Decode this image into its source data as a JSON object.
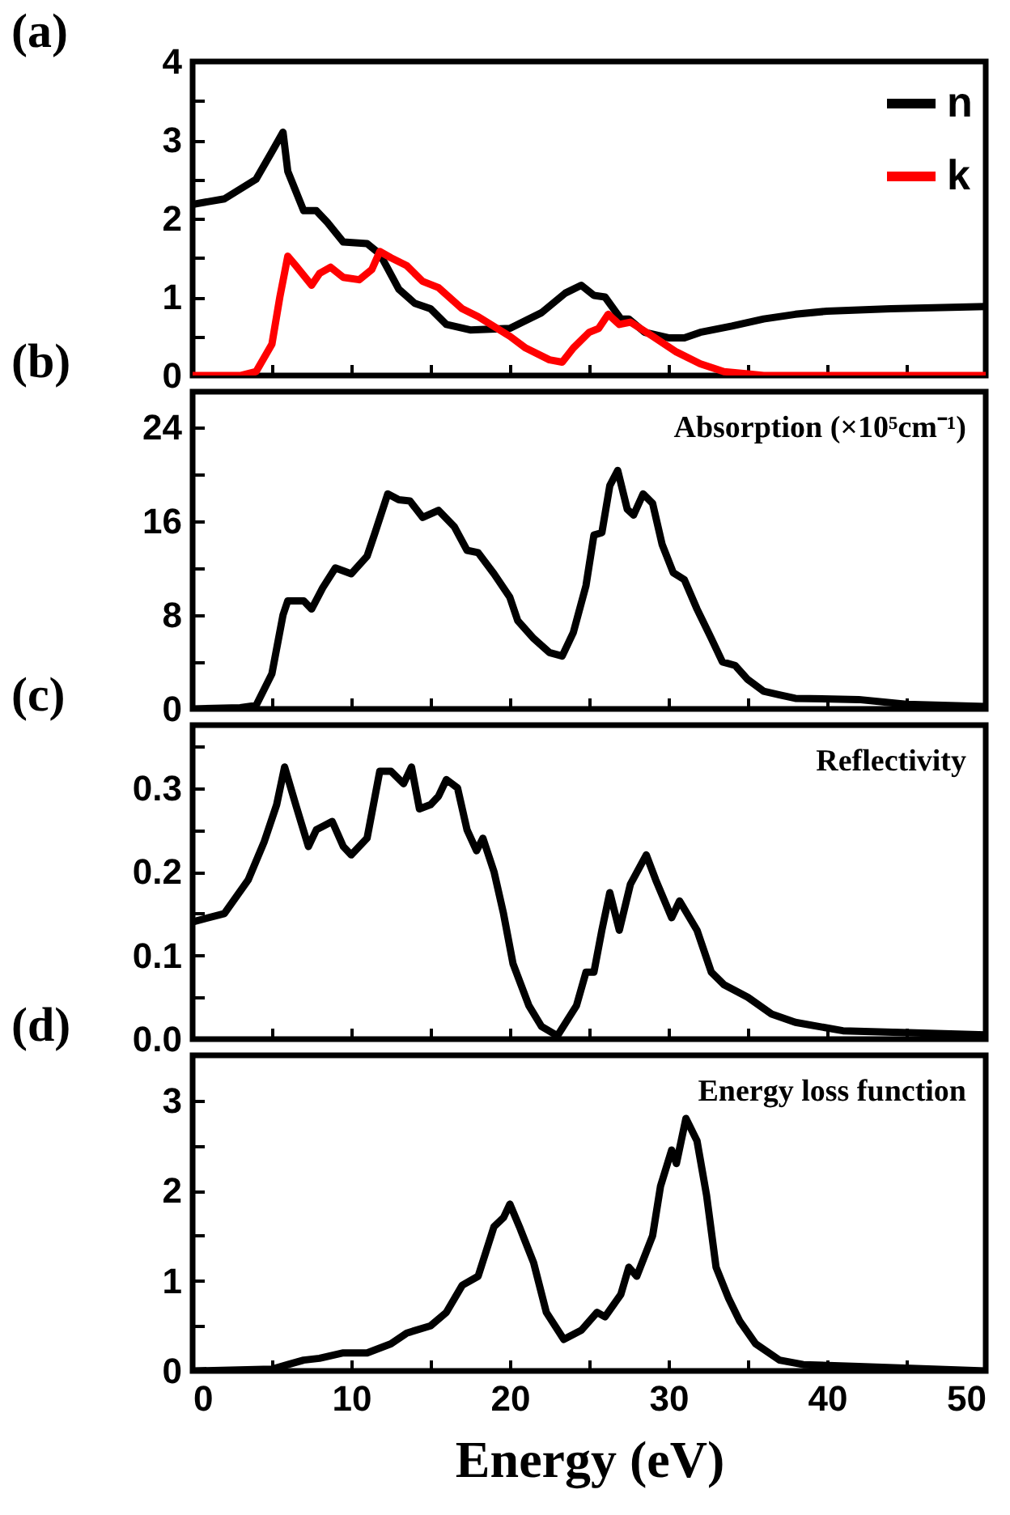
{
  "chart_data": [
    {
      "type": "line",
      "annotations": [
        "(a)"
      ],
      "xlim": [
        0,
        50
      ],
      "xticks": [
        0,
        {
          "value": 5,
          "label": null
        },
        10,
        {
          "value": 15,
          "label": null
        },
        20,
        {
          "value": 25,
          "label": null
        },
        30,
        {
          "value": 35,
          "label": null
        },
        40,
        {
          "value": 45,
          "label": null
        },
        50
      ],
      "ylim": [
        0,
        4
      ],
      "yticks": [
        0,
        {
          "value": 0.5,
          "label": null
        },
        1,
        {
          "value": 1.5,
          "label": null
        },
        2,
        {
          "value": 2.5,
          "label": null
        },
        3,
        {
          "value": 3.5,
          "label": null
        },
        4
      ],
      "tick_labels": "y",
      "legend": "top right",
      "series": [
        {
          "name": "n",
          "color": "#000000",
          "x": [
            0,
            2,
            4,
            5,
            5.7,
            6,
            6.5,
            7,
            7.8,
            8.5,
            9.5,
            11,
            11.8,
            13,
            14,
            15,
            16,
            17.5,
            20,
            22,
            23.5,
            24.5,
            25.3,
            26,
            27,
            27.5,
            28.5,
            30,
            31,
            32,
            34,
            36,
            38,
            40,
            44,
            50
          ],
          "values": [
            2.18,
            2.25,
            2.5,
            2.85,
            3.1,
            2.6,
            2.35,
            2.1,
            2.1,
            1.95,
            1.7,
            1.68,
            1.55,
            1.1,
            0.92,
            0.85,
            0.65,
            0.58,
            0.6,
            0.8,
            1.05,
            1.15,
            1.02,
            1.0,
            0.72,
            0.72,
            0.55,
            0.48,
            0.48,
            0.55,
            0.63,
            0.72,
            0.78,
            0.82,
            0.85,
            0.88
          ]
        },
        {
          "name": "k",
          "color": "#ff0000",
          "x": [
            0,
            3,
            4,
            5,
            5.5,
            6,
            6.5,
            7.5,
            8,
            8.7,
            9.5,
            10.5,
            11.3,
            11.8,
            12.5,
            13.5,
            14.5,
            15.5,
            17,
            18,
            20,
            21,
            22.5,
            23.3,
            24,
            25,
            25.6,
            26.2,
            26.9,
            27.6,
            29,
            30.5,
            32,
            33.5,
            35,
            36,
            50
          ],
          "values": [
            0,
            0,
            0.05,
            0.4,
            1.0,
            1.52,
            1.4,
            1.15,
            1.3,
            1.38,
            1.25,
            1.22,
            1.35,
            1.58,
            1.5,
            1.4,
            1.2,
            1.12,
            0.85,
            0.75,
            0.5,
            0.35,
            0.2,
            0.17,
            0.35,
            0.55,
            0.6,
            0.78,
            0.65,
            0.68,
            0.5,
            0.3,
            0.15,
            0.05,
            0.02,
            0,
            0
          ]
        }
      ]
    },
    {
      "type": "line",
      "annotations": [
        "(b)",
        "Absorption (×10⁵cm⁻¹)"
      ],
      "xlim": [
        0,
        50
      ],
      "xticks": [
        0,
        {
          "value": 5,
          "label": null
        },
        10,
        {
          "value": 15,
          "label": null
        },
        20,
        {
          "value": 25,
          "label": null
        },
        30,
        {
          "value": 35,
          "label": null
        },
        40,
        {
          "value": 45,
          "label": null
        },
        50
      ],
      "ylim": [
        0,
        27
      ],
      "yticks": [
        0,
        {
          "value": 4,
          "label": null
        },
        8,
        {
          "value": 12,
          "label": null
        },
        16,
        {
          "value": 20,
          "label": null
        },
        24
      ],
      "tick_labels": "y",
      "series": [
        {
          "color": "#000000",
          "x": [
            0,
            3,
            4,
            5,
            5.7,
            6,
            7,
            7.5,
            8.2,
            9,
            10,
            11,
            11.5,
            12.3,
            13,
            13.7,
            14.5,
            15.5,
            16.5,
            17.3,
            18,
            19,
            20,
            20.5,
            21.5,
            22.5,
            23.3,
            24,
            24.8,
            25.3,
            25.8,
            26.3,
            26.8,
            27.4,
            27.8,
            28.4,
            29,
            29.6,
            30.3,
            31,
            31.8,
            32.7,
            33.4,
            34.2,
            35,
            36,
            37,
            38,
            42,
            45,
            50
          ],
          "values": [
            0,
            0.1,
            0.3,
            3,
            8,
            9.2,
            9.2,
            8.5,
            10.3,
            12,
            11.5,
            13,
            15,
            18.3,
            17.8,
            17.7,
            16.3,
            16.9,
            15.5,
            13.5,
            13.3,
            11.5,
            9.5,
            7.5,
            6,
            4.8,
            4.5,
            6.5,
            10.5,
            14.8,
            15,
            19,
            20.3,
            17,
            16.5,
            18.3,
            17.5,
            14,
            11.6,
            11,
            8.5,
            6,
            4,
            3.7,
            2.5,
            1.5,
            1.2,
            0.9,
            0.8,
            0.4,
            0.2
          ]
        }
      ]
    },
    {
      "type": "line",
      "annotations": [
        "(c)",
        "Reflectivity"
      ],
      "xlim": [
        0,
        50
      ],
      "xticks": [
        0,
        {
          "value": 5,
          "label": null
        },
        10,
        {
          "value": 15,
          "label": null
        },
        20,
        {
          "value": 25,
          "label": null
        },
        30,
        {
          "value": 35,
          "label": null
        },
        40,
        {
          "value": 45,
          "label": null
        },
        50
      ],
      "ylim": [
        0,
        0.375
      ],
      "yticks": [
        {
          "value": 0,
          "label": "0.0"
        },
        {
          "value": 0.05,
          "label": null
        },
        0.1,
        {
          "value": 0.15,
          "label": null
        },
        0.2,
        {
          "value": 0.25,
          "label": null
        },
        0.3,
        {
          "value": 0.35,
          "label": null
        }
      ],
      "tick_labels": "y",
      "series": [
        {
          "color": "#000000",
          "x": [
            0,
            2,
            3.5,
            4.5,
            5.3,
            5.8,
            6.5,
            7.3,
            7.8,
            8.8,
            9.5,
            10,
            11,
            11.8,
            12.5,
            13.3,
            13.8,
            14.3,
            15,
            15.5,
            16,
            16.7,
            17.3,
            17.9,
            18.3,
            19,
            19.6,
            20.2,
            21.2,
            22,
            23,
            24.2,
            24.8,
            25.3,
            25.8,
            26.3,
            26.9,
            27.6,
            28.6,
            29.2,
            30.2,
            30.7,
            31.8,
            32.7,
            33.5,
            35,
            36.5,
            38,
            41,
            50
          ],
          "values": [
            0.14,
            0.15,
            0.19,
            0.235,
            0.28,
            0.325,
            0.28,
            0.23,
            0.25,
            0.26,
            0.23,
            0.22,
            0.24,
            0.32,
            0.32,
            0.305,
            0.325,
            0.275,
            0.28,
            0.29,
            0.31,
            0.3,
            0.25,
            0.225,
            0.24,
            0.2,
            0.15,
            0.09,
            0.04,
            0.015,
            0.004,
            0.04,
            0.08,
            0.08,
            0.13,
            0.175,
            0.13,
            0.185,
            0.22,
            0.19,
            0.145,
            0.165,
            0.13,
            0.08,
            0.065,
            0.05,
            0.03,
            0.02,
            0.01,
            0.005
          ]
        }
      ]
    },
    {
      "type": "line",
      "xlabel": "Energy (eV)",
      "annotations": [
        "(d)",
        "Energy loss function"
      ],
      "xlim": [
        0,
        50
      ],
      "xticks": [
        0,
        {
          "value": 5,
          "label": null
        },
        10,
        {
          "value": 15,
          "label": null
        },
        20,
        {
          "value": 25,
          "label": null
        },
        30,
        {
          "value": 35,
          "label": null
        },
        40,
        {
          "value": 45,
          "label": null
        },
        50
      ],
      "ylim": [
        0,
        3.5
      ],
      "yticks": [
        0,
        {
          "value": 0.5,
          "label": null
        },
        1,
        {
          "value": 1.5,
          "label": null
        },
        2,
        {
          "value": 2.5,
          "label": null
        },
        3
      ],
      "series": [
        {
          "color": "#000000",
          "x": [
            0,
            5,
            6,
            7,
            8,
            9.5,
            11,
            12.5,
            13.5,
            15,
            16,
            17,
            18,
            19,
            19.6,
            20,
            20.6,
            21.5,
            22.3,
            23.4,
            24.5,
            25.5,
            26,
            27,
            27.5,
            28,
            29,
            29.5,
            30.2,
            30.5,
            31.1,
            31.8,
            32.4,
            33,
            33.8,
            34.5,
            35.5,
            37,
            38.5,
            42,
            50
          ],
          "values": [
            0,
            0.02,
            0.07,
            0.12,
            0.14,
            0.2,
            0.2,
            0.3,
            0.42,
            0.5,
            0.65,
            0.95,
            1.05,
            1.6,
            1.7,
            1.85,
            1.6,
            1.2,
            0.65,
            0.35,
            0.45,
            0.65,
            0.6,
            0.85,
            1.15,
            1.05,
            1.5,
            2.05,
            2.45,
            2.3,
            2.8,
            2.55,
            1.95,
            1.15,
            0.8,
            0.55,
            0.3,
            0.12,
            0.07,
            0.05,
            0
          ]
        }
      ]
    }
  ]
}
